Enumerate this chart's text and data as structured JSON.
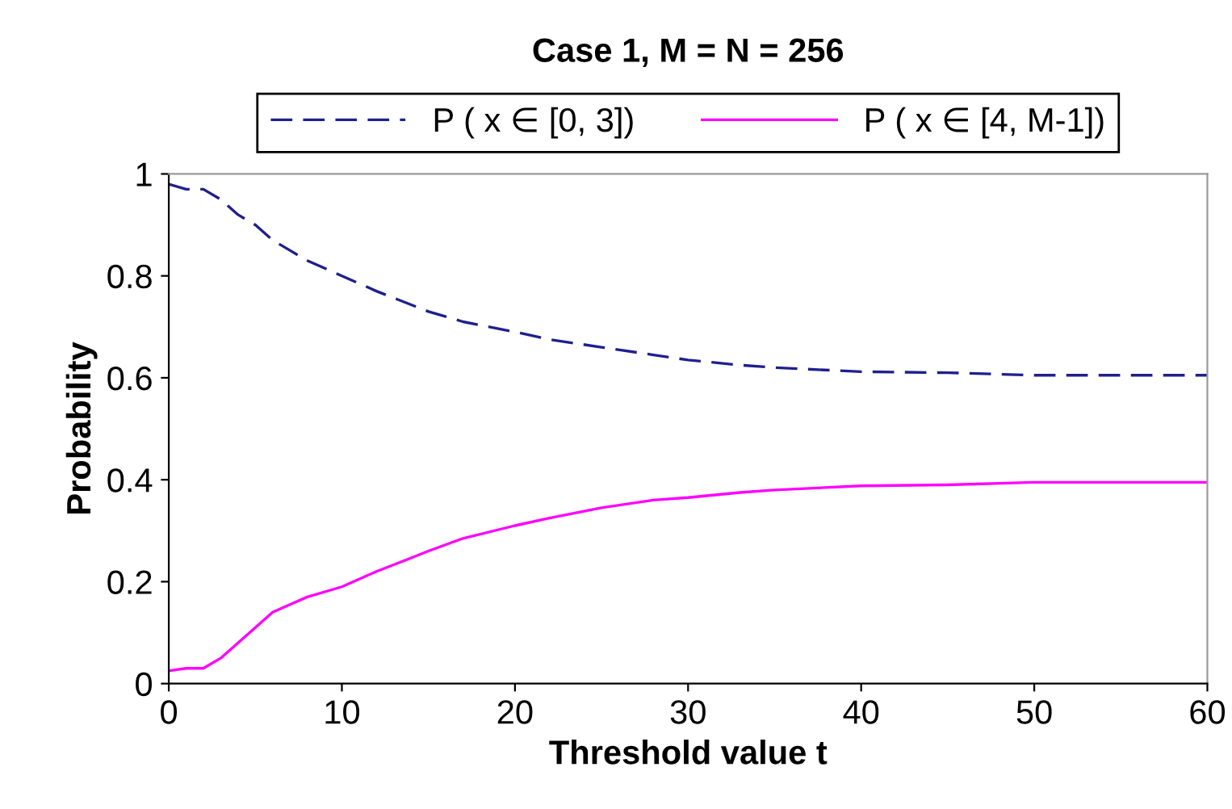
{
  "chart_data": {
    "type": "line",
    "title": "Case 1, M = N = 256",
    "xlabel": "Threshold value t",
    "ylabel": "Probability",
    "xlim": [
      0,
      60
    ],
    "ylim": [
      0,
      1
    ],
    "xticks": [
      0,
      10,
      20,
      30,
      40,
      50,
      60
    ],
    "yticks": [
      0,
      0.2,
      0.4,
      0.6,
      0.8,
      1
    ],
    "grid": false,
    "legend": "top",
    "x": [
      0,
      1,
      2,
      3,
      4,
      5,
      6,
      7,
      8,
      10,
      12,
      15,
      17,
      20,
      22,
      25,
      28,
      30,
      33,
      35,
      40,
      45,
      50,
      55,
      60
    ],
    "series": [
      {
        "name": "P ( x ∈ [0, 3])",
        "color": "#1f1f8f",
        "line_style": "dashed",
        "values": [
          0.98,
          0.97,
          0.97,
          0.95,
          0.92,
          0.9,
          0.87,
          0.85,
          0.83,
          0.8,
          0.77,
          0.73,
          0.71,
          0.69,
          0.675,
          0.66,
          0.645,
          0.635,
          0.625,
          0.62,
          0.612,
          0.61,
          0.605,
          0.605,
          0.605
        ]
      },
      {
        "name": "P ( x ∈ [4, M-1])",
        "color": "#ff00ff",
        "line_style": "solid",
        "values": [
          0.025,
          0.03,
          0.03,
          0.05,
          0.08,
          0.11,
          0.14,
          0.155,
          0.17,
          0.19,
          0.22,
          0.26,
          0.285,
          0.31,
          0.325,
          0.345,
          0.36,
          0.365,
          0.375,
          0.38,
          0.388,
          0.39,
          0.395,
          0.395,
          0.395
        ]
      }
    ]
  }
}
